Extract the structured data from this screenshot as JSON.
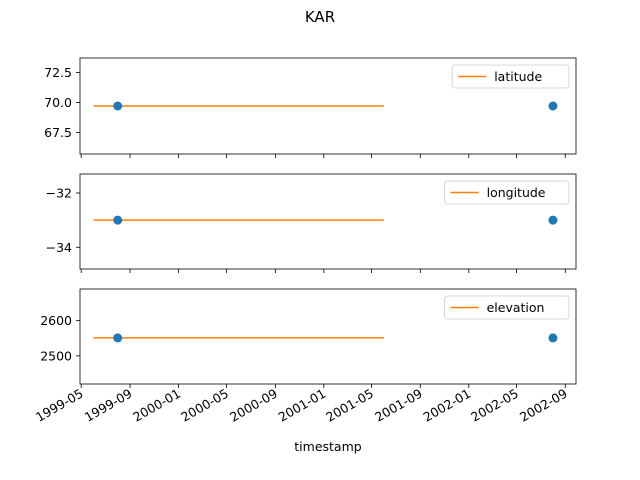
{
  "chart_data": {
    "type": "line",
    "title": "KAR",
    "xlabel": "timestamp",
    "x_ticks": [
      "1999-05",
      "1999-09",
      "2000-01",
      "2000-05",
      "2000-09",
      "2001-01",
      "2001-05",
      "2001-09",
      "2002-01",
      "2002-05",
      "2002-09"
    ],
    "colors": {
      "line": "#ff7f0e",
      "points": "#1f77b4"
    },
    "panels": [
      {
        "ylim": [
          65.7,
          73.7
        ],
        "yticks": [
          67.5,
          70.0,
          72.5
        ],
        "ytick_labels": [
          "67.5",
          "70.0",
          "72.5"
        ],
        "legend": "top-right",
        "series": [
          {
            "name": "latitude",
            "kind": "line",
            "x": [
              "1999-06-01",
              "2001-06-01"
            ],
            "y": [
              69.7,
              69.7
            ]
          },
          {
            "kind": "scatter",
            "x": [
              "1999-08-01",
              "2002-08-01"
            ],
            "y": [
              69.7,
              69.7
            ]
          }
        ]
      },
      {
        "ylim": [
          -34.8,
          -31.3
        ],
        "yticks": [
          -34,
          -32
        ],
        "ytick_labels": [
          "−34",
          "−32"
        ],
        "legend": "top-right",
        "series": [
          {
            "name": "longitude",
            "kind": "line",
            "x": [
              "1999-06-01",
              "2001-06-01"
            ],
            "y": [
              -33.0,
              -33.0
            ]
          },
          {
            "kind": "scatter",
            "x": [
              "1999-08-01",
              "2002-08-01"
            ],
            "y": [
              -33.0,
              -33.0
            ]
          }
        ]
      },
      {
        "ylim": [
          2420,
          2690
        ],
        "yticks": [
          2500,
          2600
        ],
        "ytick_labels": [
          "2500",
          "2600"
        ],
        "legend": "top-right",
        "series": [
          {
            "name": "elevation",
            "kind": "line",
            "x": [
              "1999-06-01",
              "2001-06-01"
            ],
            "y": [
              2551,
              2551
            ]
          },
          {
            "kind": "scatter",
            "x": [
              "1999-08-01",
              "2002-08-01"
            ],
            "y": [
              2551,
              2551
            ]
          }
        ]
      }
    ]
  }
}
